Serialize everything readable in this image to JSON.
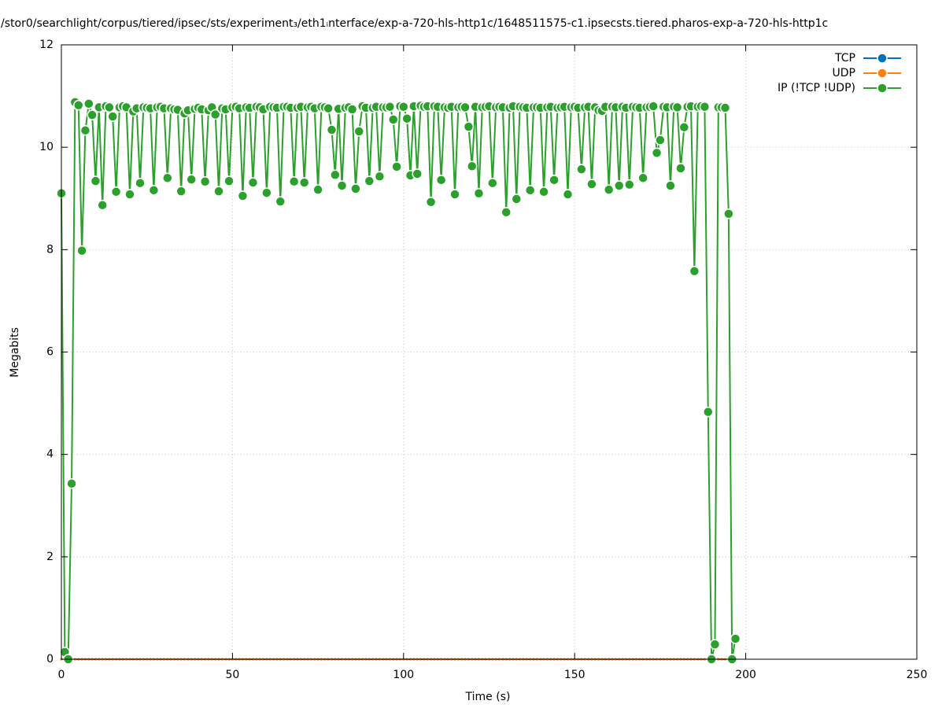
{
  "chart_data": {
    "type": "line",
    "title": "/stor0/searchlight/corpus/tiered/ipsec/sts/experiment₃/eth1ᵢnterface/exp-a-720-hls-http1c/1648511575-c1.ipsecsts.tiered.pharos-exp-a-720-hls-http1c",
    "xlabel": "Time (s)",
    "ylabel": "Megabits",
    "xlim": [
      0,
      250
    ],
    "xticks": [
      0,
      50,
      100,
      150,
      200,
      250
    ],
    "ylim": [
      0,
      12
    ],
    "yticks": [
      0,
      2,
      4,
      6,
      8,
      10,
      12
    ],
    "grid": true,
    "legend": "top-right",
    "x": [
      0,
      1,
      2,
      3,
      4,
      5,
      6,
      7,
      8,
      9,
      10,
      11,
      12,
      13,
      14,
      15,
      16,
      17,
      18,
      19,
      20,
      21,
      22,
      23,
      24,
      25,
      26,
      27,
      28,
      29,
      30,
      31,
      32,
      33,
      34,
      35,
      36,
      37,
      38,
      39,
      40,
      41,
      42,
      43,
      44,
      45,
      46,
      47,
      48,
      49,
      50,
      51,
      52,
      53,
      54,
      55,
      56,
      57,
      58,
      59,
      60,
      61,
      62,
      63,
      64,
      65,
      66,
      67,
      68,
      69,
      70,
      71,
      72,
      73,
      74,
      75,
      76,
      77,
      78,
      79,
      80,
      81,
      82,
      83,
      84,
      85,
      86,
      87,
      88,
      89,
      90,
      91,
      92,
      93,
      94,
      95,
      96,
      97,
      98,
      99,
      100,
      101,
      102,
      103,
      104,
      105,
      106,
      107,
      108,
      109,
      110,
      111,
      112,
      113,
      114,
      115,
      116,
      117,
      118,
      119,
      120,
      121,
      122,
      123,
      124,
      125,
      126,
      127,
      128,
      129,
      130,
      131,
      132,
      133,
      134,
      135,
      136,
      137,
      138,
      139,
      140,
      141,
      142,
      143,
      144,
      145,
      146,
      147,
      148,
      149,
      150,
      151,
      152,
      153,
      154,
      155,
      156,
      157,
      158,
      159,
      160,
      161,
      162,
      163,
      164,
      165,
      166,
      167,
      168,
      169,
      170,
      171,
      172,
      173,
      174,
      175,
      176,
      177,
      178,
      179,
      180,
      181,
      182,
      183,
      184,
      185,
      186,
      187,
      188,
      189,
      190,
      191,
      192,
      193,
      194,
      195,
      196,
      197
    ],
    "series": [
      {
        "name": "TCP",
        "color": "#0072bd",
        "values": [
          0,
          0,
          0,
          0,
          0,
          0,
          0,
          0,
          0,
          0,
          0,
          0,
          0,
          0,
          0,
          0,
          0,
          0,
          0,
          0,
          0,
          0,
          0,
          0,
          0,
          0,
          0,
          0,
          0,
          0,
          0,
          0,
          0,
          0,
          0,
          0,
          0,
          0,
          0,
          0,
          0,
          0,
          0,
          0,
          0,
          0,
          0,
          0,
          0,
          0,
          0,
          0,
          0,
          0,
          0,
          0,
          0,
          0,
          0,
          0,
          0,
          0,
          0,
          0,
          0,
          0,
          0,
          0,
          0,
          0,
          0,
          0,
          0,
          0,
          0,
          0,
          0,
          0,
          0,
          0,
          0,
          0,
          0,
          0,
          0,
          0,
          0,
          0,
          0,
          0,
          0,
          0,
          0,
          0,
          0,
          0,
          0,
          0,
          0,
          0,
          0,
          0,
          0,
          0,
          0,
          0,
          0,
          0,
          0,
          0,
          0,
          0,
          0,
          0,
          0,
          0,
          0,
          0,
          0,
          0,
          0,
          0,
          0,
          0,
          0,
          0,
          0,
          0,
          0,
          0,
          0,
          0,
          0,
          0,
          0,
          0,
          0,
          0,
          0,
          0,
          0,
          0,
          0,
          0,
          0,
          0,
          0,
          0,
          0,
          0,
          0,
          0,
          0,
          0,
          0,
          0,
          0,
          0,
          0,
          0,
          0,
          0,
          0,
          0,
          0,
          0,
          0,
          0,
          0,
          0,
          0,
          0,
          0,
          0,
          0,
          0,
          0,
          0,
          0,
          0,
          0,
          0,
          0,
          0,
          0,
          0,
          0,
          0,
          0,
          0,
          0,
          0,
          0,
          0,
          0,
          0,
          0,
          0
        ]
      },
      {
        "name": "UDP",
        "color": "#ff7f0e",
        "values": [
          0,
          0,
          0,
          0,
          0,
          0,
          0,
          0,
          0,
          0,
          0,
          0,
          0,
          0,
          0,
          0,
          0,
          0,
          0,
          0,
          0,
          0,
          0,
          0,
          0,
          0,
          0,
          0,
          0,
          0,
          0,
          0,
          0,
          0,
          0,
          0,
          0,
          0,
          0,
          0,
          0,
          0,
          0,
          0,
          0,
          0,
          0,
          0,
          0,
          0,
          0,
          0,
          0,
          0,
          0,
          0,
          0,
          0,
          0,
          0,
          0,
          0,
          0,
          0,
          0,
          0,
          0,
          0,
          0,
          0,
          0,
          0,
          0,
          0,
          0,
          0,
          0,
          0,
          0,
          0,
          0,
          0,
          0,
          0,
          0,
          0,
          0,
          0,
          0,
          0,
          0,
          0,
          0,
          0,
          0,
          0,
          0,
          0,
          0,
          0,
          0,
          0,
          0,
          0,
          0,
          0,
          0,
          0,
          0,
          0,
          0,
          0,
          0,
          0,
          0,
          0,
          0,
          0,
          0,
          0,
          0,
          0,
          0,
          0,
          0,
          0,
          0,
          0,
          0,
          0,
          0,
          0,
          0,
          0,
          0,
          0,
          0,
          0,
          0,
          0,
          0,
          0,
          0,
          0,
          0,
          0,
          0,
          0,
          0,
          0,
          0,
          0,
          0,
          0,
          0,
          0,
          0,
          0,
          0,
          0,
          0,
          0,
          0,
          0,
          0,
          0,
          0,
          0,
          0,
          0,
          0,
          0,
          0,
          0,
          0,
          0,
          0,
          0,
          0,
          0,
          0,
          0,
          0,
          0,
          0,
          0,
          0,
          0,
          0,
          0,
          0,
          0,
          0,
          0,
          0,
          0,
          0,
          0
        ]
      },
      {
        "name": "IP (!TCP  !UDP)",
        "color": "#2ca02c",
        "values": [
          9.1,
          0.14,
          0,
          3.43,
          10.88,
          10.82,
          7.98,
          10.33,
          10.85,
          10.63,
          9.34,
          10.78,
          8.87,
          10.8,
          10.78,
          10.6,
          9.13,
          10.78,
          10.8,
          10.78,
          9.08,
          10.7,
          10.76,
          9.3,
          10.78,
          10.77,
          10.76,
          9.16,
          10.78,
          10.79,
          10.76,
          9.4,
          10.76,
          10.74,
          10.73,
          9.14,
          10.66,
          10.72,
          9.37,
          10.75,
          10.77,
          10.74,
          9.33,
          10.72,
          10.78,
          10.64,
          9.14,
          10.76,
          10.74,
          9.34,
          10.78,
          10.79,
          10.76,
          9.05,
          10.78,
          10.77,
          9.31,
          10.79,
          10.78,
          10.74,
          9.11,
          10.79,
          10.78,
          10.77,
          8.94,
          10.79,
          10.79,
          10.77,
          9.33,
          10.77,
          10.79,
          9.31,
          10.78,
          10.79,
          10.76,
          9.17,
          10.79,
          10.78,
          10.76,
          10.34,
          9.46,
          10.75,
          9.25,
          10.77,
          10.78,
          10.74,
          9.19,
          10.31,
          10.8,
          10.77,
          9.34,
          10.77,
          10.79,
          9.43,
          10.78,
          10.78,
          10.79,
          10.54,
          9.62,
          10.8,
          10.79,
          10.56,
          9.45,
          10.8,
          9.48,
          10.81,
          10.79,
          10.8,
          8.93,
          10.8,
          10.79,
          9.36,
          10.78,
          10.77,
          10.79,
          9.08,
          10.78,
          10.79,
          10.78,
          10.4,
          9.63,
          10.79,
          9.1,
          10.78,
          10.79,
          10.8,
          9.3,
          10.78,
          10.79,
          10.78,
          8.73,
          10.77,
          10.8,
          8.99,
          10.79,
          10.78,
          10.77,
          9.16,
          10.78,
          10.78,
          10.77,
          9.13,
          10.78,
          10.79,
          9.36,
          10.77,
          10.78,
          10.79,
          9.08,
          10.78,
          10.79,
          10.77,
          9.57,
          10.78,
          10.79,
          9.28,
          10.78,
          10.72,
          10.71,
          10.79,
          9.17,
          10.79,
          10.78,
          9.25,
          10.79,
          10.77,
          9.27,
          10.79,
          10.78,
          10.77,
          9.4,
          10.78,
          10.79,
          10.8,
          9.89,
          10.14,
          10.79,
          10.78,
          9.25,
          10.79,
          10.78,
          9.59,
          10.39,
          10.79,
          10.8,
          7.58,
          10.79,
          10.8,
          10.79,
          4.83,
          0,
          0.29,
          10.78,
          10.78,
          10.77,
          8.7,
          0,
          0.4
        ]
      }
    ]
  }
}
